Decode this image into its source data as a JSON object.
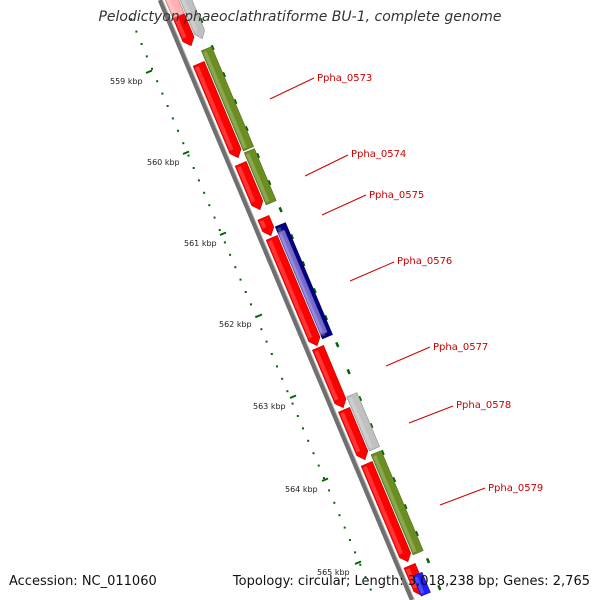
{
  "title": "Pelodictyon phaeoclathratiforme BU-1, complete genome",
  "accession": "Accession: NC_011060",
  "summary": "Topology: circular; Length: 3,018,238 bp; Genes: 2,765",
  "colors": {
    "backbone": "#808080",
    "forward_cds": "#ff0000",
    "reverse_cds_olive": "#6b8e23",
    "reverse_cds_gray": "#c0c0c0",
    "reverse_cds_blue": "#000080",
    "tick_green": "#006400",
    "label_red": "#cc0000"
  },
  "scale_labels": [
    "559 kbp",
    "560 kbp",
    "561 kbp",
    "562 kbp",
    "563 kbp",
    "564 kbp",
    "565 kbp"
  ],
  "gene_labels": [
    "Ppha_0573",
    "Ppha_0574",
    "Ppha_0575",
    "Ppha_0576",
    "Ppha_0577",
    "Ppha_0578",
    "Ppha_0579"
  ]
}
